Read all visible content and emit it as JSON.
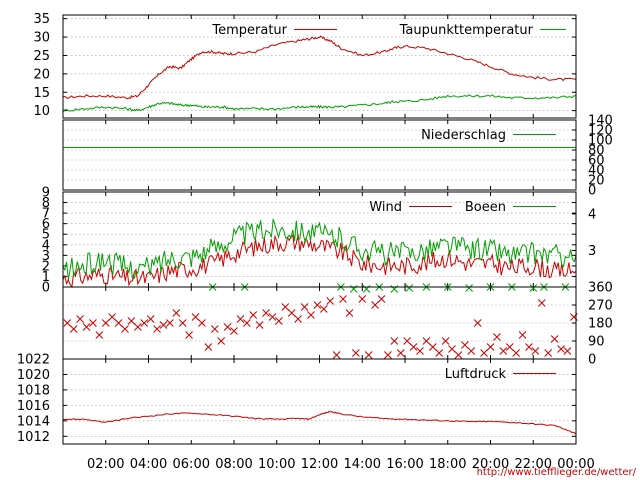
{
  "footer": {
    "url": "http://www.tiefflieger.de/wetter/"
  },
  "colors": {
    "red": "#cc0000",
    "green": "#00a000"
  },
  "chart_data": [
    {
      "type": "line",
      "panel": "temperature",
      "legend_placement": "top",
      "ylim": [
        8,
        36
      ],
      "y_ticks": [
        "10",
        "15",
        "20",
        "25",
        "30",
        "35"
      ],
      "x_hours": [
        0,
        1,
        2,
        3,
        3.5,
        4,
        4.5,
        5,
        5.5,
        6,
        6.5,
        7,
        7.5,
        8,
        9,
        10,
        11,
        11.5,
        12,
        12.5,
        13,
        14,
        15,
        15.5,
        16,
        17,
        18,
        19,
        20,
        21,
        22,
        23,
        24
      ],
      "series": [
        {
          "name": "Temperatur",
          "color": "#cc0000",
          "values": [
            13.5,
            14,
            14,
            13.5,
            14,
            17,
            20,
            22,
            21.5,
            24,
            26,
            26,
            25.5,
            25.5,
            26,
            28,
            29,
            29.5,
            30,
            29,
            27,
            25,
            26,
            27,
            27.5,
            27,
            25.5,
            24,
            22,
            20,
            19,
            18.5,
            18.5
          ]
        },
        {
          "name": "Taupunkttemperatur",
          "color": "#00a000",
          "values": [
            10,
            10.5,
            11,
            10.5,
            10,
            11,
            12,
            12,
            11.5,
            11.5,
            11,
            11,
            11,
            10.5,
            10.5,
            10.5,
            11,
            11,
            11,
            11,
            11,
            11.5,
            12,
            12.5,
            12.5,
            13,
            14,
            14,
            14,
            13.5,
            13.5,
            13.5,
            14
          ]
        }
      ]
    },
    {
      "type": "line",
      "panel": "precipitation",
      "ylim": [
        0,
        140
      ],
      "y_ticks_right": [
        "0",
        "20",
        "40",
        "60",
        "80",
        "100",
        "120",
        "140"
      ],
      "series": [
        {
          "name": "Niederschlag",
          "color": "#00a000",
          "values": [
            85,
            85
          ]
        }
      ]
    },
    {
      "type": "line",
      "panel": "wind",
      "ylim": [
        0,
        9
      ],
      "y_ticks": [
        "0",
        "1",
        "2",
        "3",
        "4",
        "5",
        "6",
        "7",
        "8",
        "9"
      ],
      "y_ticks_right": [
        "3",
        "4"
      ],
      "x_hours": [
        0,
        1,
        2,
        3,
        4,
        5,
        6,
        7,
        8,
        9,
        10,
        11,
        12,
        13,
        14,
        15,
        16,
        17,
        18,
        19,
        20,
        21,
        22,
        23,
        24
      ],
      "series": [
        {
          "name": "Wind",
          "color": "#cc0000",
          "values": [
            0.8,
            1.0,
            1.2,
            0.8,
            0.8,
            1.5,
            1.8,
            2.2,
            3.2,
            3.8,
            4.2,
            4.3,
            3.9,
            3.3,
            2.2,
            2.0,
            2.0,
            2.3,
            2.8,
            2.2,
            2.2,
            1.8,
            2.0,
            1.5,
            1.5
          ]
        },
        {
          "name": "Boeen",
          "color": "#00a000",
          "values": [
            1.5,
            2.0,
            2.6,
            1.8,
            1.8,
            2.8,
            3.0,
            3.6,
            4.8,
            5.2,
            5.6,
            5.4,
            5.0,
            4.6,
            3.6,
            3.2,
            3.2,
            3.6,
            4.0,
            3.6,
            3.6,
            3.0,
            3.2,
            3.0,
            3.0
          ]
        }
      ]
    },
    {
      "type": "scatter",
      "panel": "wind-direction",
      "ylim": [
        0,
        360
      ],
      "y_ticks_right": [
        "0",
        "90",
        "180",
        "270",
        "360"
      ],
      "series": [
        {
          "name": "",
          "color": "#cc0000",
          "points": [
            [
              0.2,
              180
            ],
            [
              0.5,
              150
            ],
            [
              0.8,
              200
            ],
            [
              1.1,
              160
            ],
            [
              1.4,
              180
            ],
            [
              1.7,
              120
            ],
            [
              2.0,
              180
            ],
            [
              2.3,
              210
            ],
            [
              2.6,
              180
            ],
            [
              2.9,
              150
            ],
            [
              3.2,
              190
            ],
            [
              3.5,
              160
            ],
            [
              3.8,
              180
            ],
            [
              4.1,
              200
            ],
            [
              4.4,
              150
            ],
            [
              4.7,
              170
            ],
            [
              5.0,
              180
            ],
            [
              5.3,
              230
            ],
            [
              5.6,
              180
            ],
            [
              5.9,
              120
            ],
            [
              6.2,
              210
            ],
            [
              6.5,
              180
            ],
            [
              6.8,
              60
            ],
            [
              7.1,
              150
            ],
            [
              7.4,
              90
            ],
            [
              7.7,
              160
            ],
            [
              8.0,
              140
            ],
            [
              8.3,
              200
            ],
            [
              8.6,
              180
            ],
            [
              8.9,
              220
            ],
            [
              9.2,
              170
            ],
            [
              9.5,
              230
            ],
            [
              9.8,
              210
            ],
            [
              10.1,
              190
            ],
            [
              10.4,
              260
            ],
            [
              10.7,
              230
            ],
            [
              11.0,
              200
            ],
            [
              11.3,
              260
            ],
            [
              11.6,
              220
            ],
            [
              11.9,
              270
            ],
            [
              12.2,
              250
            ],
            [
              12.5,
              290
            ],
            [
              12.8,
              20
            ],
            [
              13.1,
              300
            ],
            [
              13.4,
              230
            ],
            [
              13.7,
              30
            ],
            [
              14.0,
              300
            ],
            [
              14.3,
              20
            ],
            [
              14.6,
              270
            ],
            [
              14.9,
              300
            ],
            [
              15.2,
              20
            ],
            [
              15.5,
              90
            ],
            [
              15.8,
              30
            ],
            [
              16.1,
              90
            ],
            [
              16.4,
              60
            ],
            [
              16.7,
              40
            ],
            [
              17.0,
              90
            ],
            [
              17.3,
              60
            ],
            [
              17.6,
              30
            ],
            [
              17.9,
              90
            ],
            [
              18.2,
              50
            ],
            [
              18.5,
              20
            ],
            [
              18.8,
              70
            ],
            [
              19.1,
              40
            ],
            [
              19.4,
              180
            ],
            [
              19.7,
              30
            ],
            [
              20.0,
              60
            ],
            [
              20.3,
              110
            ],
            [
              20.6,
              40
            ],
            [
              20.9,
              60
            ],
            [
              21.2,
              30
            ],
            [
              21.5,
              120
            ],
            [
              21.8,
              60
            ],
            [
              22.1,
              40
            ],
            [
              22.4,
              280
            ],
            [
              22.7,
              30
            ],
            [
              23.0,
              100
            ],
            [
              23.3,
              50
            ],
            [
              23.6,
              40
            ],
            [
              23.9,
              210
            ]
          ]
        },
        {
          "name": "",
          "color": "#00a000",
          "points": [
            [
              7.0,
              360
            ],
            [
              8.5,
              360
            ],
            [
              13.0,
              360
            ],
            [
              13.6,
              350
            ],
            [
              14.2,
              350
            ],
            [
              14.8,
              360
            ],
            [
              15.5,
              350
            ],
            [
              16.2,
              355
            ],
            [
              17.0,
              360
            ],
            [
              18.0,
              360
            ],
            [
              19.0,
              355
            ],
            [
              20.0,
              360
            ],
            [
              21.0,
              360
            ],
            [
              22.0,
              355
            ],
            [
              22.5,
              360
            ],
            [
              23.5,
              360
            ]
          ]
        }
      ]
    },
    {
      "type": "line",
      "panel": "pressure",
      "ylim": [
        1011,
        1022
      ],
      "y_ticks": [
        "1012",
        "1014",
        "1016",
        "1018",
        "1020",
        "1022"
      ],
      "x_ticks": [
        "02:00",
        "04:00",
        "06:00",
        "08:00",
        "10:00",
        "12:00",
        "14:00",
        "16:00",
        "18:00",
        "20:00",
        "22:00",
        "00:00"
      ],
      "x_hours": [
        0,
        1,
        2,
        3,
        4,
        5,
        6,
        7,
        8,
        9,
        10,
        11,
        11.5,
        12,
        12.5,
        13,
        14,
        15,
        16,
        17,
        18,
        19,
        20,
        21,
        22,
        23,
        23.5,
        24
      ],
      "series": [
        {
          "name": "Luftdruck",
          "color": "#cc0000",
          "values": [
            1014.2,
            1014.2,
            1013.8,
            1014.3,
            1014.6,
            1014.9,
            1015,
            1014.8,
            1014.6,
            1014.3,
            1014.2,
            1014.3,
            1014.2,
            1014.8,
            1015.2,
            1014.9,
            1014.5,
            1014.3,
            1014.2,
            1014.1,
            1014,
            1013.9,
            1013.9,
            1013.8,
            1013.6,
            1013.4,
            1012.9,
            1012.3
          ]
        }
      ]
    }
  ]
}
